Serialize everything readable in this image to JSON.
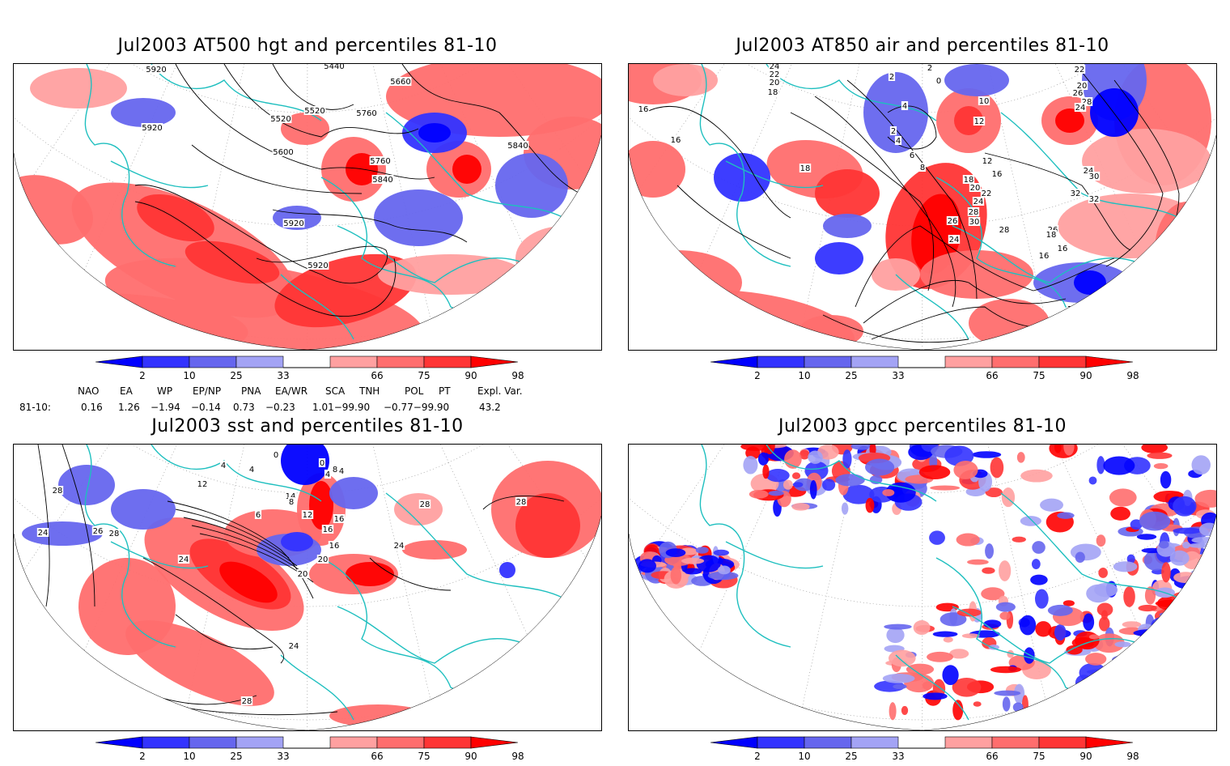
{
  "panels": {
    "hgt": {
      "title": "Jul2003 AT500 hgt and percentiles 81-10",
      "contour_labels": [
        "5920",
        "5440",
        "5660",
        "5520",
        "5520",
        "5760",
        "5600",
        "5760",
        "5840",
        "5840",
        "5920",
        "5920",
        "5920"
      ]
    },
    "air": {
      "title": "Jul2003 AT850 air and percentiles 81-10",
      "contour_labels": [
        "24",
        "22",
        "20",
        "18",
        "2",
        "0",
        "2",
        "4",
        "2",
        "10",
        "12",
        "4",
        "6",
        "8",
        "16",
        "16",
        "18",
        "12",
        "18",
        "16",
        "20",
        "22",
        "24",
        "28",
        "30",
        "26",
        "24",
        "22",
        "20",
        "26",
        "28",
        "24",
        "24",
        "30",
        "32",
        "32",
        "28",
        "26",
        "16",
        "18",
        "16",
        "18",
        "16",
        "16",
        "16"
      ]
    },
    "sst": {
      "title": "Jul2003 sst and percentiles 81-10",
      "contour_labels": [
        "28",
        "24",
        "12",
        "4",
        "4",
        "0",
        "8",
        "4",
        "0",
        "4",
        "14",
        "8",
        "12",
        "16",
        "6",
        "16",
        "20",
        "16",
        "20",
        "24",
        "28",
        "28",
        "26",
        "24",
        "28",
        "24",
        "28"
      ]
    },
    "gpcc": {
      "title": "Jul2003 gpcc percentiles 81-10"
    }
  },
  "colorbar": {
    "labels": [
      "2",
      "10",
      "25",
      "33",
      "66",
      "75",
      "90",
      "98"
    ],
    "colors": {
      "b1": "#0000ff",
      "b2": "#3333ff",
      "b3": "#6666ee",
      "b4": "#a3a3f5",
      "r1": "#ffa0a0",
      "r2": "#ff6e6e",
      "r3": "#ff3535",
      "r4": "#ff0000"
    }
  },
  "indices": {
    "headers": [
      "NAO",
      "EA",
      "WP",
      "EP/NP",
      "PNA",
      "EA/WR",
      "SCA",
      "TNH",
      "POL",
      "PT",
      "Expl. Var."
    ],
    "row_label": "81-10:",
    "values": [
      "0.16",
      "1.26",
      "−1.94",
      "−0.14",
      "0.73",
      "−0.23",
      "1.01−99.90",
      "−0.77−99.90",
      "43.2"
    ]
  },
  "map_colors": {
    "coast": "#1ebfbf",
    "contour": "#000000",
    "grid": "#888888"
  }
}
